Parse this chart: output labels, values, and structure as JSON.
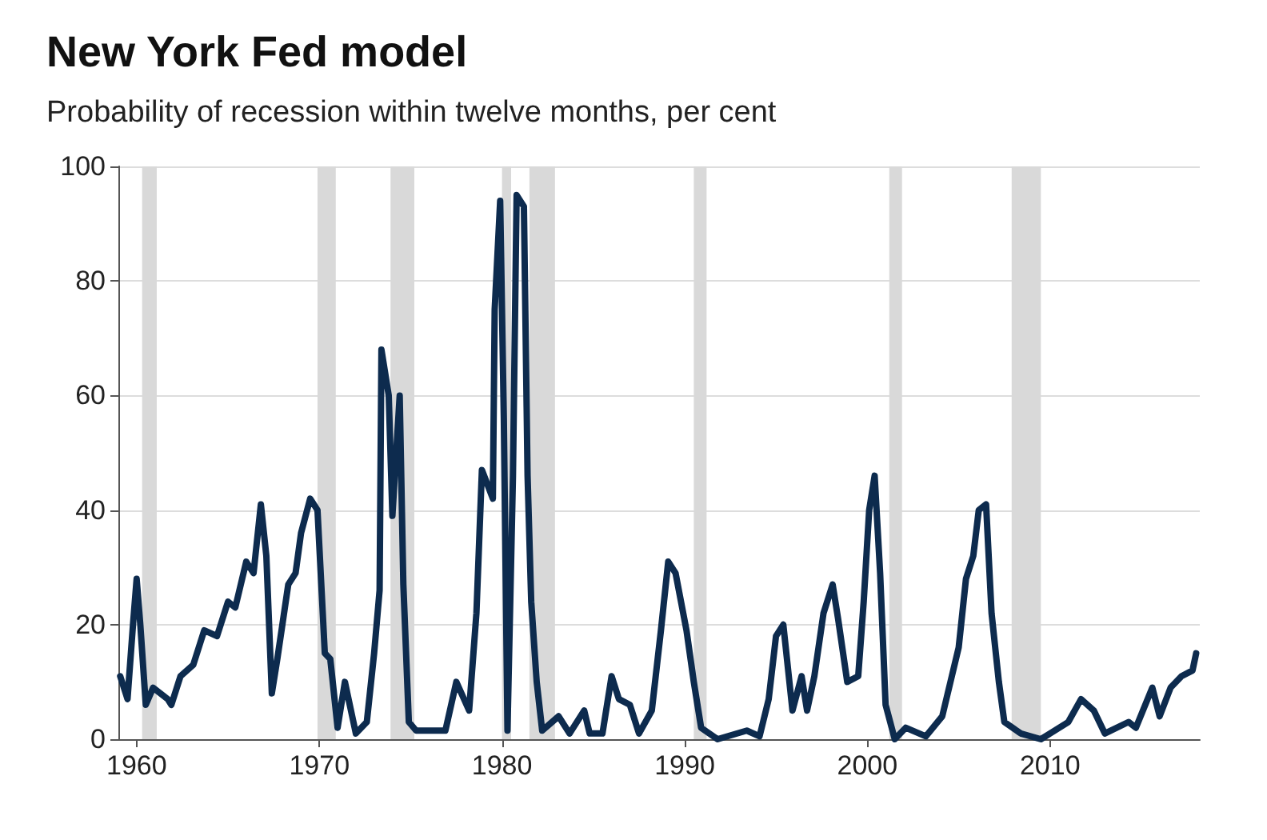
{
  "chart_data": {
    "type": "line",
    "title": "New York Fed model",
    "subtitle": "Probability of recession within twelve months, per cent",
    "xlim": [
      1959,
      2018.2
    ],
    "xticks": [
      1960,
      1970,
      1980,
      1990,
      2000,
      2010
    ],
    "ylim": [
      0,
      100
    ],
    "yticks": [
      0,
      20,
      40,
      60,
      80,
      100
    ],
    "grid": "y",
    "marker": "none",
    "line_style": "solid",
    "x": [
      1959.1,
      1959.2,
      1959.5,
      1959.8,
      1960.0,
      1960.2,
      1960.5,
      1960.9,
      1961.7,
      1961.9,
      1962.4,
      1963.1,
      1963.7,
      1964.4,
      1965.0,
      1965.4,
      1966.0,
      1966.4,
      1966.8,
      1967.1,
      1967.4,
      1967.7,
      1968.3,
      1968.7,
      1969.0,
      1969.5,
      1969.9,
      1970.3,
      1970.6,
      1971.0,
      1971.4,
      1972.0,
      1972.6,
      1973.0,
      1973.3,
      1973.4,
      1973.8,
      1974.0,
      1974.4,
      1974.6,
      1974.9,
      1975.3,
      1976.0,
      1976.9,
      1977.5,
      1978.2,
      1978.6,
      1978.9,
      1979.5,
      1979.6,
      1979.9,
      1980.1,
      1980.3,
      1980.6,
      1980.8,
      1981.2,
      1981.4,
      1981.6,
      1981.9,
      1982.2,
      1983.1,
      1983.7,
      1984.5,
      1984.8,
      1985.5,
      1986.0,
      1986.4,
      1987.0,
      1987.5,
      1988.2,
      1988.7,
      1989.1,
      1989.5,
      1990.1,
      1990.5,
      1990.9,
      1991.8,
      1993.4,
      1994.1,
      1994.6,
      1995.0,
      1995.4,
      1995.9,
      1996.4,
      1996.7,
      1997.1,
      1997.6,
      1998.1,
      1998.4,
      1998.9,
      1999.5,
      1999.8,
      2000.1,
      2000.4,
      2000.7,
      2001.0,
      2001.5,
      2002.1,
      2003.2,
      2004.1,
      2005.0,
      2005.4,
      2005.8,
      2006.1,
      2006.5,
      2006.8,
      2007.2,
      2007.5,
      2008.4,
      2009.5,
      2010.0,
      2011.0,
      2011.7,
      2012.4,
      2013.0,
      2014.3,
      2014.7,
      2015.6,
      2016.0,
      2016.6,
      2017.2,
      2017.8,
      2018.0
    ],
    "series": [
      {
        "color": "#0d2b4e",
        "values": [
          11,
          10,
          7,
          20,
          28,
          20,
          6,
          9,
          7,
          6,
          11,
          13,
          19,
          18,
          24,
          23,
          31,
          29,
          41,
          32,
          8,
          14,
          27,
          29,
          36,
          42,
          40,
          15,
          14,
          2,
          10,
          1,
          3,
          15,
          26,
          68,
          60,
          39,
          60,
          27,
          3,
          1.5,
          1.5,
          1.5,
          10,
          5,
          22,
          47,
          42,
          75,
          94,
          56,
          1.5,
          46,
          95,
          93,
          46,
          24,
          10,
          1.5,
          4,
          1,
          5,
          1,
          1,
          11,
          7,
          6,
          1,
          5,
          19,
          31,
          29,
          19,
          10,
          2,
          0,
          1.5,
          0.5,
          7,
          18,
          20,
          5,
          11,
          5,
          11,
          22,
          27,
          21,
          10,
          11,
          24,
          40,
          46,
          29,
          6,
          0,
          2,
          0.5,
          4,
          16,
          28,
          32,
          40,
          41,
          22,
          10,
          3,
          1,
          0,
          1,
          3,
          7,
          5,
          1,
          3,
          2,
          9,
          4,
          9,
          11,
          12,
          15
        ]
      }
    ],
    "bands": [
      {
        "axis": "x",
        "from": 1960.3,
        "to": 1961.1,
        "color": "#d9d9d9"
      },
      {
        "axis": "x",
        "from": 1969.9,
        "to": 1970.9,
        "color": "#d9d9d9"
      },
      {
        "axis": "x",
        "from": 1973.9,
        "to": 1975.2,
        "color": "#d9d9d9"
      },
      {
        "axis": "x",
        "from": 1980.0,
        "to": 1980.5,
        "color": "#d9d9d9"
      },
      {
        "axis": "x",
        "from": 1981.5,
        "to": 1982.9,
        "color": "#d9d9d9"
      },
      {
        "axis": "x",
        "from": 1990.5,
        "to": 1991.2,
        "color": "#d9d9d9"
      },
      {
        "axis": "x",
        "from": 2001.2,
        "to": 2001.9,
        "color": "#d9d9d9"
      },
      {
        "axis": "x",
        "from": 2007.9,
        "to": 2009.5,
        "color": "#d9d9d9"
      }
    ]
  }
}
